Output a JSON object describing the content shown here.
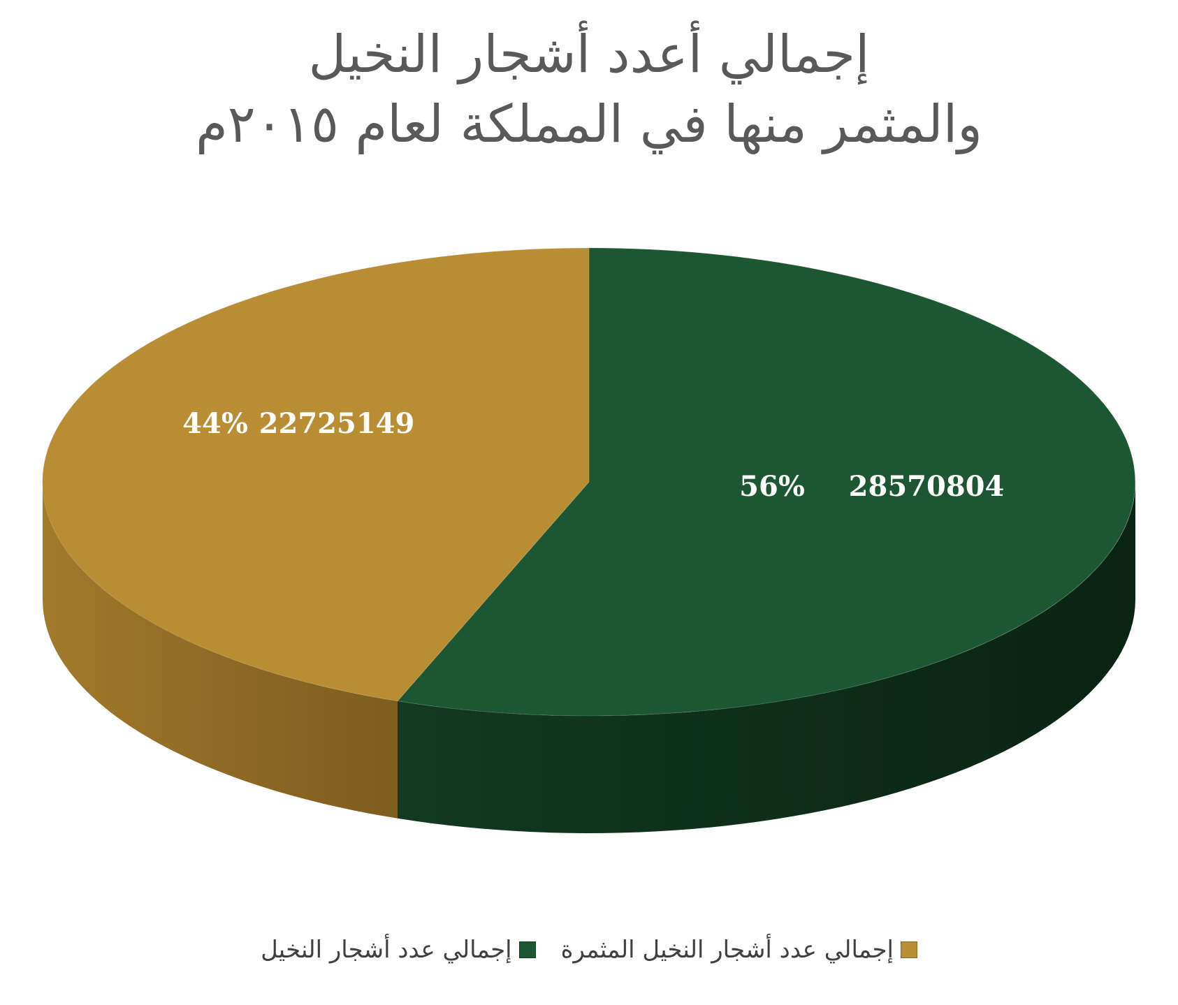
{
  "chart_data": {
    "type": "pie",
    "title_lines": [
      "إجمالي أعدد أشجار النخيل",
      "والمثمر منها في المملكة لعام ٢٠١٥م"
    ],
    "categories": [
      "إجمالي عدد أشجار النخيل المثمرة",
      "إجمالي عدد أشجار النخيل"
    ],
    "values": [
      22725149,
      28570804
    ],
    "percent_labels": [
      "44%",
      "56%"
    ],
    "value_labels": [
      "22725149",
      "28570804"
    ],
    "colors": [
      "#B98D33",
      "#1C5633"
    ],
    "legend_position": "bottom",
    "three_d": true
  }
}
